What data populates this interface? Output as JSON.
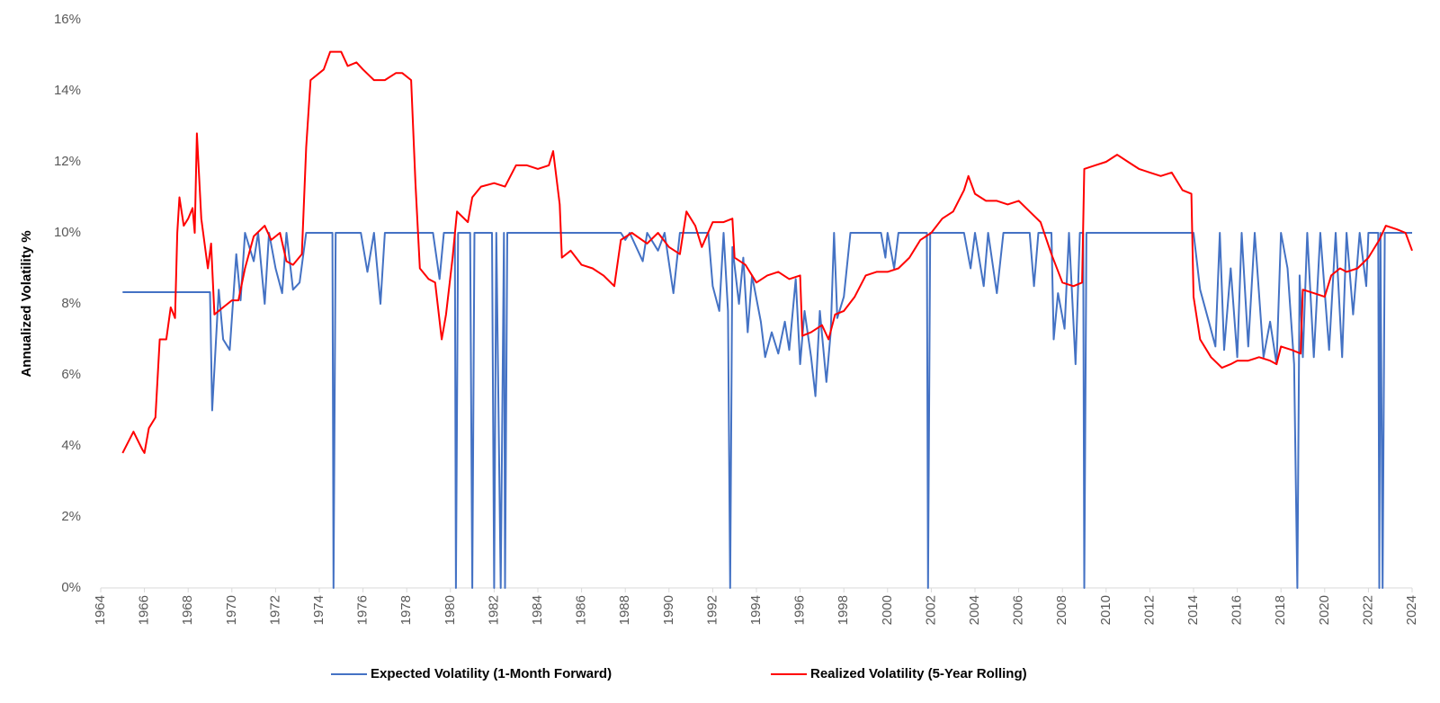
{
  "chart_data": {
    "type": "line",
    "y_label": "Annualized Volatility %",
    "xlim": [
      1964,
      2024
    ],
    "xticks": [
      1964,
      1966,
      1968,
      1970,
      1972,
      1974,
      1976,
      1978,
      1980,
      1982,
      1984,
      1986,
      1988,
      1990,
      1992,
      1994,
      1996,
      1998,
      2000,
      2002,
      2004,
      2006,
      2008,
      2010,
      2012,
      2014,
      2016,
      2018,
      2020,
      2022,
      2024
    ],
    "ylim": [
      0,
      16
    ],
    "yticks": [
      {
        "value": 0,
        "label": "0%"
      },
      {
        "value": 2,
        "label": "2%"
      },
      {
        "value": 4,
        "label": "4%"
      },
      {
        "value": 6,
        "label": "6%"
      },
      {
        "value": 8,
        "label": "8%"
      },
      {
        "value": 10,
        "label": "10%"
      },
      {
        "value": 12,
        "label": "12%"
      },
      {
        "value": 14,
        "label": "14%"
      },
      {
        "value": 16,
        "label": "16%"
      }
    ],
    "grid": false,
    "legend": "bottom",
    "series": [
      {
        "name": "Expected Volatility (1-Month Forward)",
        "color": "#4472c4",
        "x": [
          1965.0,
          1969.0,
          1969.1,
          1969.4,
          1969.6,
          1969.9,
          1970.2,
          1970.4,
          1970.6,
          1971.0,
          1971.2,
          1971.5,
          1971.7,
          1972.0,
          1972.3,
          1972.5,
          1972.8,
          1973.1,
          1973.4,
          1974.6,
          1974.65,
          1974.75,
          1975.9,
          1976.2,
          1976.5,
          1976.8,
          1977.0,
          1979.2,
          1979.5,
          1979.7,
          1980.2,
          1980.25,
          1980.35,
          1980.9,
          1981.0,
          1981.1,
          1981.9,
          1982.0,
          1982.1,
          1982.3,
          1982.45,
          1982.5,
          1982.6,
          1987.8,
          1988.0,
          1988.2,
          1988.8,
          1989.0,
          1989.5,
          1989.8,
          1990.2,
          1990.5,
          1991.8,
          1992.0,
          1992.3,
          1992.5,
          1992.7,
          1992.8,
          1992.9,
          1993.2,
          1993.4,
          1993.6,
          1993.8,
          1994.2,
          1994.4,
          1994.7,
          1995.0,
          1995.3,
          1995.5,
          1995.8,
          1996.0,
          1996.2,
          1996.5,
          1996.7,
          1996.9,
          1997.2,
          1997.4,
          1997.55,
          1997.7,
          1998.0,
          1998.3,
          1999.7,
          1999.9,
          2000.0,
          2000.3,
          2000.5,
          2001.8,
          2001.85,
          2001.95,
          2003.5,
          2003.8,
          2004.0,
          2004.4,
          2004.6,
          2005.0,
          2005.3,
          2006.5,
          2006.7,
          2006.9,
          2007.5,
          2007.6,
          2007.8,
          2008.1,
          2008.3,
          2008.6,
          2008.8,
          2008.95,
          2009.0,
          2009.1,
          2014.0,
          2014.3,
          2014.7,
          2015.0,
          2015.2,
          2015.4,
          2015.7,
          2016.0,
          2016.2,
          2016.5,
          2016.8,
          2017.2,
          2017.5,
          2017.8,
          2018.0,
          2018.3,
          2018.6,
          2018.75,
          2018.85,
          2019.0,
          2019.2,
          2019.5,
          2019.8,
          2020.2,
          2020.5,
          2020.8,
          2021.0,
          2021.3,
          2021.6,
          2021.9,
          2022.0,
          2022.45,
          2022.5,
          2022.55,
          2022.65,
          2022.75,
          2024.0
        ],
        "values": [
          8.33,
          8.33,
          5,
          8.4,
          7,
          6.7,
          9.4,
          8.1,
          10,
          9.2,
          10,
          8,
          10,
          9,
          8.3,
          10,
          8.4,
          8.6,
          10,
          10,
          0,
          10,
          10,
          8.9,
          10,
          8,
          10,
          10,
          8.7,
          10,
          10,
          0,
          10,
          10,
          0,
          10,
          10,
          0,
          10,
          0,
          10,
          0,
          10,
          10,
          9.8,
          10,
          9.2,
          10,
          9.5,
          10,
          8.3,
          10,
          10,
          8.5,
          7.8,
          10,
          7.8,
          0,
          9.6,
          8,
          9.3,
          7.2,
          8.8,
          7.5,
          6.5,
          7.2,
          6.6,
          7.5,
          6.7,
          8.7,
          6.3,
          7.8,
          6.5,
          5.4,
          7.8,
          5.8,
          7.2,
          10,
          7.6,
          8.2,
          10,
          10,
          9.3,
          10,
          9,
          10,
          10,
          0,
          10,
          10,
          9,
          10,
          8.5,
          10,
          8.3,
          10,
          10,
          8.5,
          10,
          10,
          7,
          8.3,
          7.3,
          10,
          6.3,
          10,
          10,
          0,
          10,
          10,
          8.4,
          7.5,
          6.8,
          10,
          6.7,
          9,
          6.5,
          10,
          6.8,
          10,
          6.5,
          7.5,
          6.3,
          10,
          9,
          6.3,
          0,
          8.8,
          6.5,
          10,
          6.5,
          10,
          6.7,
          10,
          6.5,
          10,
          7.7,
          10,
          8.5,
          10,
          10,
          0,
          10,
          0,
          10,
          10
        ]
      },
      {
        "name": "Realized Volatility (5-Year Rolling)",
        "color": "#ff0000",
        "x": [
          1965.0,
          1965.5,
          1965.9,
          1966.0,
          1966.2,
          1966.5,
          1966.7,
          1967.0,
          1967.2,
          1967.4,
          1967.5,
          1967.6,
          1967.8,
          1968.0,
          1968.2,
          1968.3,
          1968.4,
          1968.6,
          1968.9,
          1969.05,
          1969.2,
          1969.6,
          1970.0,
          1970.3,
          1970.6,
          1971.0,
          1971.5,
          1971.8,
          1972.2,
          1972.5,
          1972.8,
          1973.2,
          1973.4,
          1973.6,
          1974.2,
          1974.5,
          1975.0,
          1975.3,
          1975.7,
          1976.0,
          1976.5,
          1977.0,
          1977.5,
          1977.8,
          1978.2,
          1978.4,
          1978.6,
          1979.0,
          1979.3,
          1979.6,
          1979.8,
          1980.1,
          1980.3,
          1980.8,
          1981.0,
          1981.4,
          1982.0,
          1982.5,
          1983.0,
          1983.5,
          1984.0,
          1984.5,
          1984.7,
          1985.0,
          1985.1,
          1985.5,
          1986.0,
          1986.5,
          1987.0,
          1987.5,
          1987.8,
          1988.3,
          1989.0,
          1989.5,
          1990.0,
          1990.5,
          1990.8,
          1991.2,
          1991.5,
          1992.0,
          1992.5,
          1992.9,
          1993.0,
          1993.5,
          1994.0,
          1994.5,
          1995.0,
          1995.5,
          1996.0,
          1996.1,
          1996.5,
          1997.0,
          1997.3,
          1997.6,
          1998.0,
          1998.5,
          1999.0,
          1999.5,
          2000.0,
          2000.5,
          2001.0,
          2001.5,
          2002.0,
          2002.5,
          2003.0,
          2003.5,
          2003.7,
          2004.0,
          2004.5,
          2005.0,
          2005.5,
          2006.0,
          2006.5,
          2007.0,
          2007.5,
          2008.0,
          2008.5,
          2008.9,
          2009.0,
          2009.5,
          2010.0,
          2010.5,
          2011.0,
          2011.5,
          2012.0,
          2012.5,
          2013.0,
          2013.5,
          2013.9,
          2014.0,
          2014.3,
          2014.8,
          2015.3,
          2015.7,
          2016.0,
          2016.5,
          2017.0,
          2017.5,
          2017.8,
          2018.0,
          2018.5,
          2018.9,
          2019.0,
          2019.5,
          2020.0,
          2020.3,
          2020.7,
          2021.0,
          2021.5,
          2022.0,
          2022.5,
          2022.8,
          2023.3,
          2023.7,
          2024.0
        ],
        "values": [
          3.8,
          4.4,
          3.9,
          3.8,
          4.5,
          4.8,
          7.0,
          7.0,
          7.9,
          7.6,
          10,
          11,
          10.2,
          10.4,
          10.7,
          10,
          12.8,
          10.4,
          9,
          9.7,
          7.7,
          7.9,
          8.1,
          8.1,
          9.0,
          9.9,
          10.2,
          9.8,
          10,
          9.2,
          9.1,
          9.4,
          12.4,
          14.3,
          14.6,
          15.1,
          15.1,
          14.7,
          14.8,
          14.6,
          14.3,
          14.3,
          14.5,
          14.5,
          14.3,
          11.4,
          9.0,
          8.7,
          8.6,
          7.0,
          7.7,
          9.3,
          10.6,
          10.3,
          11.0,
          11.3,
          11.4,
          11.3,
          11.9,
          11.9,
          11.8,
          11.9,
          12.3,
          10.8,
          9.3,
          9.5,
          9.1,
          9.0,
          8.8,
          8.5,
          9.8,
          10,
          9.7,
          10,
          9.6,
          9.4,
          10.6,
          10.2,
          9.6,
          10.3,
          10.3,
          10.4,
          9.3,
          9.1,
          8.6,
          8.8,
          8.9,
          8.7,
          8.8,
          7.1,
          7.2,
          7.4,
          7.0,
          7.7,
          7.8,
          8.2,
          8.8,
          8.9,
          8.9,
          9.0,
          9.3,
          9.8,
          10.0,
          10.4,
          10.6,
          11.2,
          11.6,
          11.1,
          10.9,
          10.9,
          10.8,
          10.9,
          10.6,
          10.3,
          9.4,
          8.6,
          8.5,
          8.6,
          11.8,
          11.9,
          12.0,
          12.2,
          12.0,
          11.8,
          11.7,
          11.6,
          11.7,
          11.2,
          11.1,
          8.2,
          7.0,
          6.5,
          6.2,
          6.3,
          6.4,
          6.4,
          6.5,
          6.4,
          6.3,
          6.8,
          6.7,
          6.6,
          8.4,
          8.3,
          8.2,
          8.8,
          9.0,
          8.9,
          9.0,
          9.3,
          9.8,
          10.2,
          10.1,
          10.0,
          9.5
        ]
      }
    ]
  }
}
